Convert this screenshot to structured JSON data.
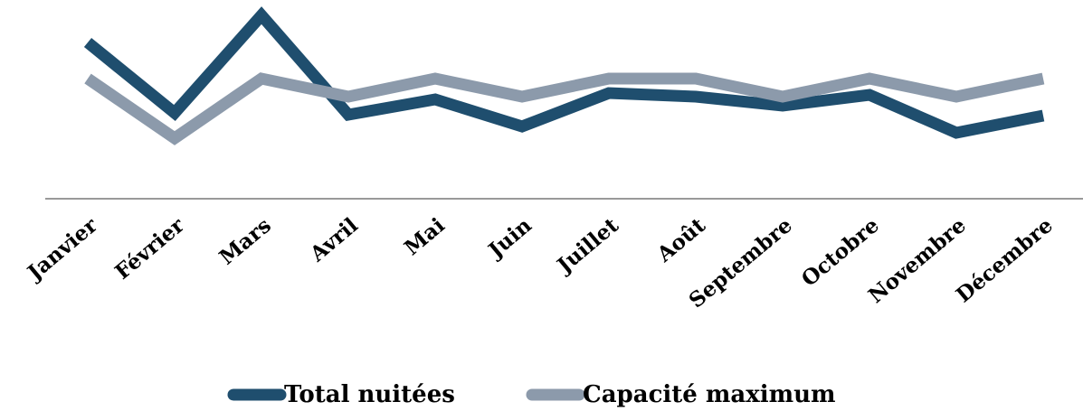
{
  "chart_data": {
    "type": "line",
    "categories": [
      "Janvier",
      "Février",
      "Mars",
      "Avril",
      "Mai",
      "Juin",
      "Juillet",
      "Août",
      "Septembre",
      "Octobre",
      "Novembre",
      "Décembre"
    ],
    "series": [
      {
        "name": "Total nuitées",
        "color": "#1f4e6e",
        "values": [
          173,
          95,
          203,
          93,
          110,
          80,
          117,
          113,
          103,
          115,
          73,
          92
        ]
      },
      {
        "name": "Capacité maximum",
        "color": "#8c9aab",
        "values": [
          133,
          67,
          133,
          113,
          133,
          113,
          133,
          133,
          113,
          133,
          113,
          133
        ]
      }
    ],
    "ylim": [
      0,
      220
    ]
  }
}
